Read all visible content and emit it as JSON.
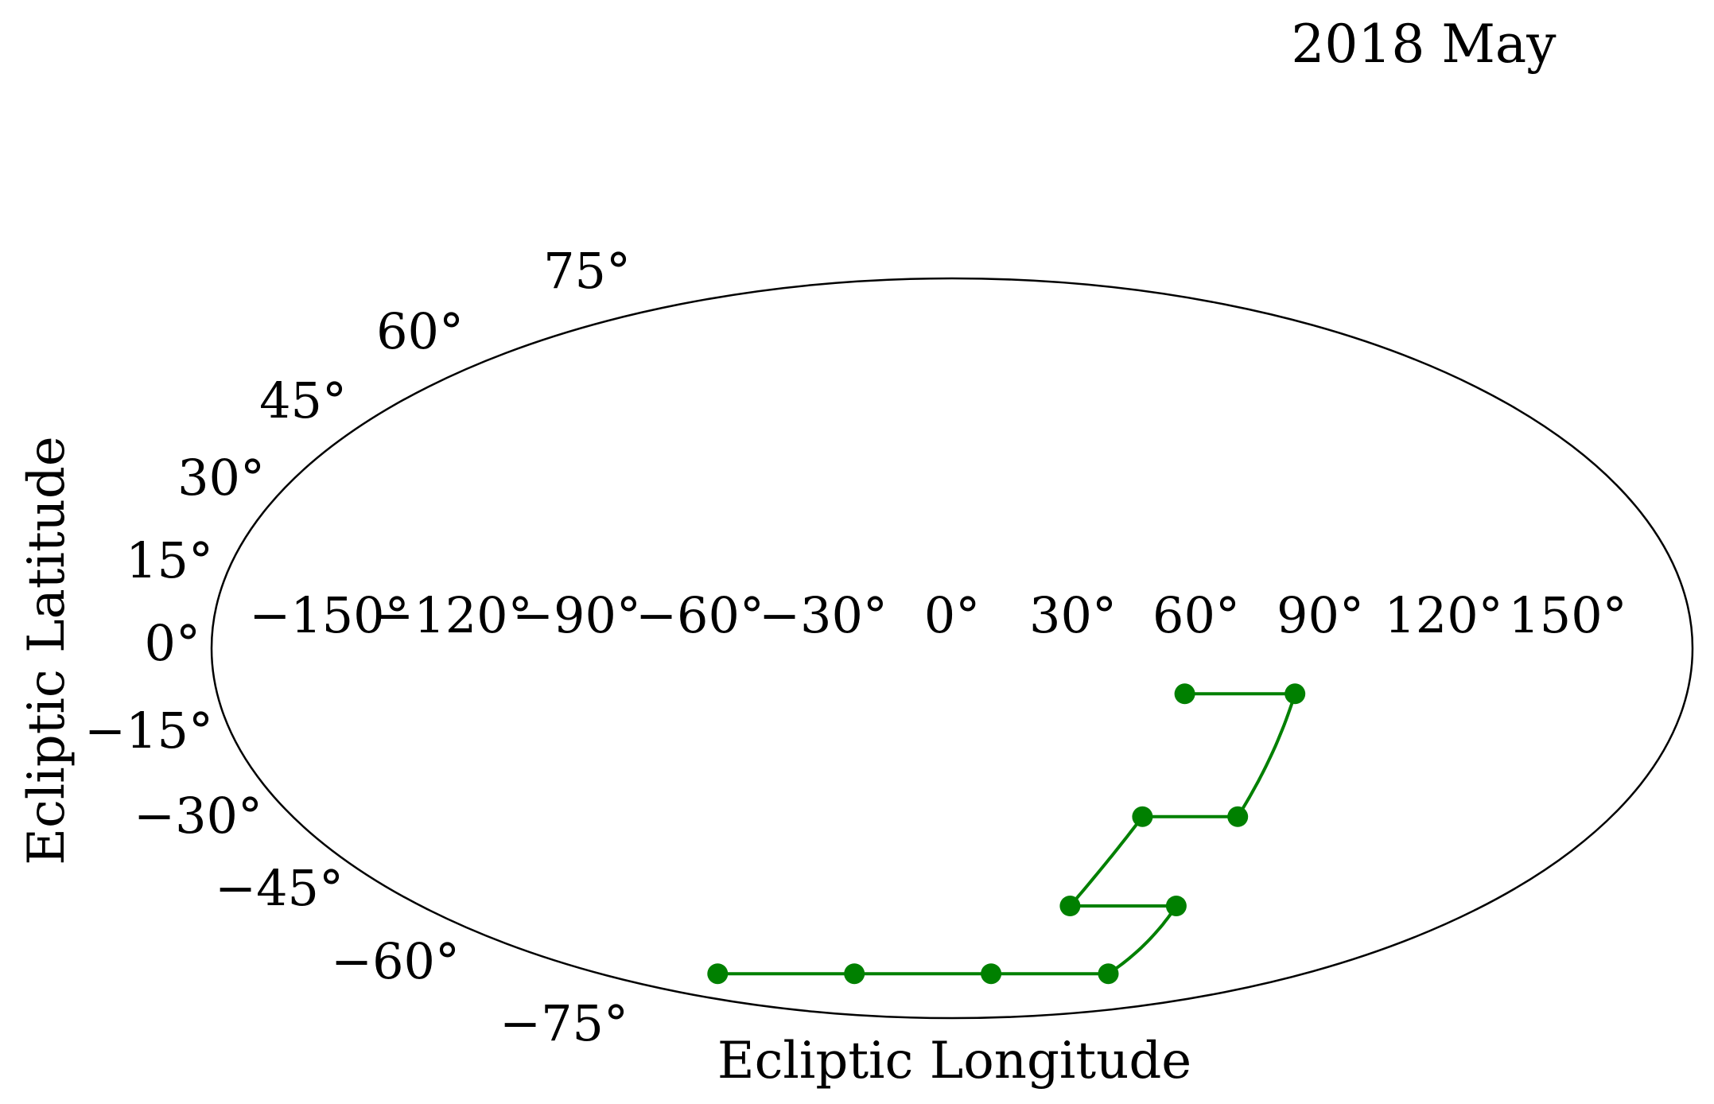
{
  "chart_data": {
    "type": "line",
    "projection": "mollweide",
    "title": "2018 May",
    "xlabel": "Ecliptic Longitude",
    "ylabel": "Ecliptic Latitude",
    "xlim": [
      -180,
      180
    ],
    "ylim": [
      -90,
      90
    ],
    "grid": false,
    "x_ticks": [
      "−150°",
      "−120°",
      "−90°",
      "−60°",
      "−30°",
      "0°",
      "30°",
      "60°",
      "90°",
      "120°",
      "150°"
    ],
    "y_ticks": [
      "75°",
      "60°",
      "45°",
      "30°",
      "15°",
      "0°",
      "−15°",
      "−30°",
      "−45°",
      "−60°",
      "−75°"
    ],
    "series": [
      {
        "color": "#008000",
        "points": [
          {
            "lon": 57,
            "lat": -9
          },
          {
            "lon": 84,
            "lat": -9
          },
          {
            "lon": 78,
            "lat": -34
          },
          {
            "lon": 52,
            "lat": -34
          },
          {
            "lon": 40,
            "lat": -54
          },
          {
            "lon": 76,
            "lat": -54
          },
          {
            "lon": 80,
            "lat": -72
          },
          {
            "lon": 20,
            "lat": -72
          },
          {
            "lon": -50,
            "lat": -72
          },
          {
            "lon": -120,
            "lat": -72
          }
        ]
      }
    ]
  }
}
